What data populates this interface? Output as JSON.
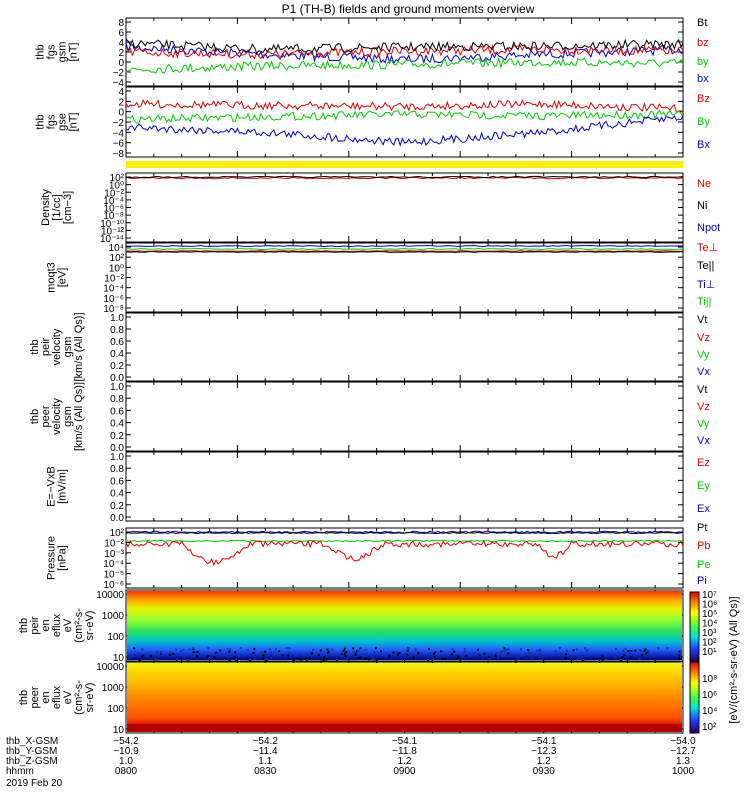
{
  "title": "P1 (TH-B) fields and ground moments overview",
  "colors": {
    "black": "#000000",
    "red": "#e00000",
    "green": "#00cc00",
    "blue": "#0000cc",
    "yellow": "#ffee00"
  },
  "panels": [
    {
      "id": "fgs-gsm",
      "ylabel": [
        "thb",
        "fgs",
        "gsm",
        "[nT]"
      ],
      "ticks": [
        "8",
        "6",
        "4",
        "2",
        "0",
        "−2",
        "−4"
      ],
      "ylim": [
        -4,
        8
      ],
      "legend": [
        {
          "text": "Bt",
          "color": "#000000"
        },
        {
          "text": "bz",
          "color": "#e00000"
        },
        {
          "text": "by",
          "color": "#00cc00"
        },
        {
          "text": "bx",
          "color": "#0000cc"
        }
      ]
    },
    {
      "id": "fgs-gse",
      "ylabel": [
        "thb",
        "fgs",
        "gse",
        "[nT]"
      ],
      "ticks": [
        "4",
        "2",
        "0",
        "−2",
        "−4",
        "−6",
        "−8"
      ],
      "ylim": [
        -8,
        4
      ],
      "legend": [
        {
          "text": "Bz",
          "color": "#e00000"
        },
        {
          "text": "By",
          "color": "#00cc00"
        },
        {
          "text": "Bx",
          "color": "#0000cc"
        }
      ]
    },
    {
      "id": "density",
      "ylabel": [
        "Density",
        "[1/cc]",
        "[cm−3]"
      ],
      "ticks": [
        "10²",
        "10⁰",
        "10⁻²",
        "10⁻⁴",
        "10⁻⁶",
        "10⁻⁸",
        "10⁻¹⁰",
        "10⁻¹²",
        "10⁻¹⁴"
      ],
      "legend": [
        {
          "text": "Ne",
          "color": "#e00000"
        },
        {
          "text": "Ni",
          "color": "#000000"
        },
        {
          "text": "Npot",
          "color": "#0000cc"
        }
      ]
    },
    {
      "id": "temperature",
      "ylabel": [
        "moqt3",
        "[eV]"
      ],
      "ticks": [
        "10⁴",
        "10²",
        "10⁰",
        "10⁻²",
        "10⁻⁴",
        "10⁻⁶",
        "10⁻⁸"
      ],
      "legend": [
        {
          "text": "Te⊥",
          "color": "#e00000"
        },
        {
          "text": "Te||",
          "color": "#000000"
        },
        {
          "text": "Ti⊥",
          "color": "#0000cc"
        },
        {
          "text": "Ti||",
          "color": "#00cc00"
        }
      ]
    },
    {
      "id": "peir-velocity",
      "ylabel": [
        "thb",
        "peir",
        "velocity",
        "gsm",
        "[km/s (All Qs)]"
      ],
      "ticks": [
        "1.0",
        "0.8",
        "0.6",
        "0.4",
        "0.2",
        "0.0"
      ],
      "legend": [
        {
          "text": "Vt",
          "color": "#000000"
        },
        {
          "text": "Vz",
          "color": "#e00000"
        },
        {
          "text": "Vy",
          "color": "#00cc00"
        },
        {
          "text": "Vx",
          "color": "#0000cc"
        }
      ]
    },
    {
      "id": "peer-velocity",
      "ylabel": [
        "thb",
        "peer",
        "velocity",
        "gsm",
        "[km/s (All Qs)]"
      ],
      "ticks": [
        "1.0",
        "0.8",
        "0.6",
        "0.4",
        "0.2",
        "0.0"
      ],
      "legend": [
        {
          "text": "Vt",
          "color": "#000000"
        },
        {
          "text": "Vz",
          "color": "#e00000"
        },
        {
          "text": "Vy",
          "color": "#00cc00"
        },
        {
          "text": "Vx",
          "color": "#0000cc"
        }
      ]
    },
    {
      "id": "efield",
      "ylabel": [
        "E=−VxB",
        "[mV/m]"
      ],
      "ticks": [
        "1.0",
        "0.8",
        "0.6",
        "0.4",
        "0.2",
        "0.0"
      ],
      "legend": [
        {
          "text": "Ez",
          "color": "#e00000"
        },
        {
          "text": "Ey",
          "color": "#00cc00"
        },
        {
          "text": "Ex",
          "color": "#0000cc"
        }
      ]
    },
    {
      "id": "pressure",
      "ylabel": [
        "Pressure",
        "[nPa]"
      ],
      "ticks": [
        "10²",
        "10⁻²",
        "10⁻³",
        "10⁻⁴",
        "10⁻⁵",
        "10⁻⁶"
      ],
      "legend": [
        {
          "text": "Pt",
          "color": "#000000"
        },
        {
          "text": "Pb",
          "color": "#e00000"
        },
        {
          "text": "Pe",
          "color": "#00cc00"
        },
        {
          "text": "Pi",
          "color": "#0000cc"
        }
      ]
    },
    {
      "id": "peir-eflux",
      "ylabel": [
        "thb",
        "peir",
        "en",
        "eflux",
        "eV",
        "(cm²-s-",
        "sr-eV)"
      ],
      "ticks": [
        "10000",
        "1000",
        "100",
        "10"
      ]
    },
    {
      "id": "peer-eflux",
      "ylabel": [
        "thb",
        "peer",
        "en",
        "eflux",
        "eV",
        "(cm²-s-",
        "sr-eV)"
      ],
      "ticks": [
        "10000",
        "1000",
        "100",
        "10"
      ]
    }
  ],
  "colorbar": {
    "label": "[eV/(cm²-s-sr-eV) (All Qs)]",
    "ticks_top": [
      "10⁷",
      "10⁶",
      "10⁵",
      "10⁴",
      "10³",
      "10²",
      "10¹"
    ],
    "ticks_bottom": [
      "10⁸",
      "10⁶",
      "10⁴",
      "10²"
    ]
  },
  "xaxis": {
    "rows": [
      {
        "label": "thb_X-GSM",
        "values": [
          "−54.2",
          "−54.2",
          "−54.1",
          "−54.1",
          "−54.0"
        ]
      },
      {
        "label": "thb_Y-GSM",
        "values": [
          "−10.9",
          "−11.4",
          "−11.8",
          "−12.3",
          "−12.7"
        ]
      },
      {
        "label": "thb_Z-GSM",
        "values": [
          "1.0",
          "1.1",
          "1.2",
          "1.2",
          "1.3"
        ]
      },
      {
        "label": "hhmm",
        "values": [
          "0800",
          "0830",
          "0900",
          "0930",
          "1000"
        ]
      }
    ],
    "date": "2019 Feb 20"
  },
  "chart_data": [
    {
      "type": "line",
      "title": "P1 (TH-B) fields and ground moments overview",
      "ylabel": "thb fgs gsm [nT]",
      "ylim": [
        -4,
        8
      ],
      "x": [
        "0800",
        "0830",
        "0900",
        "0930",
        "1000"
      ],
      "series": [
        {
          "name": "Bt",
          "values": [
            3.8,
            2.5,
            3.0,
            3.2,
            3.6
          ]
        },
        {
          "name": "bz",
          "values": [
            2.0,
            1.5,
            2.2,
            2.5,
            2.2
          ]
        },
        {
          "name": "by",
          "values": [
            -1.5,
            -0.8,
            -0.5,
            0.0,
            -0.3
          ]
        },
        {
          "name": "bx",
          "values": [
            3.0,
            1.5,
            0.5,
            1.5,
            2.5
          ]
        }
      ]
    },
    {
      "type": "line",
      "ylabel": "thb fgs gse [nT]",
      "ylim": [
        -8,
        4
      ],
      "x": [
        "0800",
        "0830",
        "0900",
        "0930",
        "1000"
      ],
      "series": [
        {
          "name": "Bz",
          "values": [
            1.5,
            1.2,
            1.0,
            1.5,
            0.5
          ]
        },
        {
          "name": "By",
          "values": [
            -1.5,
            -1.0,
            -0.5,
            -0.8,
            -0.5
          ]
        },
        {
          "name": "Bx",
          "values": [
            -3.0,
            -4.0,
            -6.0,
            -4.0,
            -1.0
          ]
        }
      ]
    },
    {
      "type": "line",
      "ylabel": "Pressure [nPa]",
      "x": [
        "0800",
        "0830",
        "0900",
        "0930",
        "1000"
      ],
      "series": [
        {
          "name": "Pt",
          "values": [
            0.03,
            0.03,
            0.03,
            0.03,
            0.03
          ]
        },
        {
          "name": "Pb",
          "values": [
            0.003,
            0.001,
            0.005,
            0.003,
            0.005
          ]
        },
        {
          "name": "Pe",
          "values": [
            0.008,
            0.008,
            0.01,
            0.01,
            0.01
          ]
        },
        {
          "name": "Pi",
          "values": [
            0.03,
            0.03,
            0.03,
            0.03,
            0.03
          ]
        }
      ]
    },
    {
      "type": "heatmap",
      "ylabel": "thb peir en eflux eV (cm²-s-sr-eV)",
      "y_ticks": [
        10000,
        1000,
        100,
        10
      ],
      "x": [
        "0800",
        "0830",
        "0900",
        "0930",
        "1000"
      ]
    },
    {
      "type": "heatmap",
      "ylabel": "thb peer en eflux eV (cm²-s-sr-eV)",
      "y_ticks": [
        10000,
        1000,
        100,
        10
      ],
      "x": [
        "0800",
        "0830",
        "0900",
        "0930",
        "1000"
      ]
    }
  ]
}
